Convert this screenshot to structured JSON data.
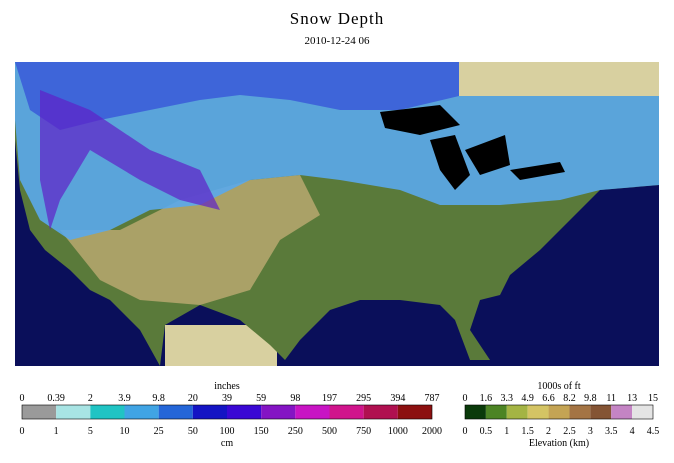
{
  "header": {
    "title": "Snow Depth",
    "subtitle": "2010-12-24 06"
  },
  "legends": [
    {
      "top_unit": "inches",
      "bottom_unit": "cm",
      "top_labels": [
        0,
        0.39,
        2,
        3.9,
        9.8,
        20,
        39,
        59,
        98,
        197,
        295,
        394,
        787
      ],
      "bottom_labels": [
        0,
        1,
        5,
        10,
        25,
        50,
        100,
        150,
        250,
        500,
        750,
        1000,
        2000
      ],
      "colors": [
        "#9a9a9a",
        "#a8e4e4",
        "#20c4c4",
        "#40a4e4",
        "#2466d8",
        "#1414c4",
        "#3a08d4",
        "#8414c4",
        "#c814c4",
        "#d0148c",
        "#b01050",
        "#8c1010"
      ]
    },
    {
      "top_unit": "1000s of ft",
      "bottom_unit": "Elevation (km)",
      "top_labels": [
        0,
        1.6,
        3.3,
        4.9,
        6.6,
        8.2,
        9.8,
        11,
        13,
        15
      ],
      "bottom_labels": [
        0,
        0.5,
        1,
        1.5,
        2,
        2.5,
        3,
        3.5,
        4,
        4.5
      ],
      "colors": [
        "#0a3a0a",
        "#4c8424",
        "#a4b444",
        "#d4c464",
        "#c4a454",
        "#a47444",
        "#845434",
        "#c484c4",
        "#e4e4e4"
      ]
    }
  ]
}
